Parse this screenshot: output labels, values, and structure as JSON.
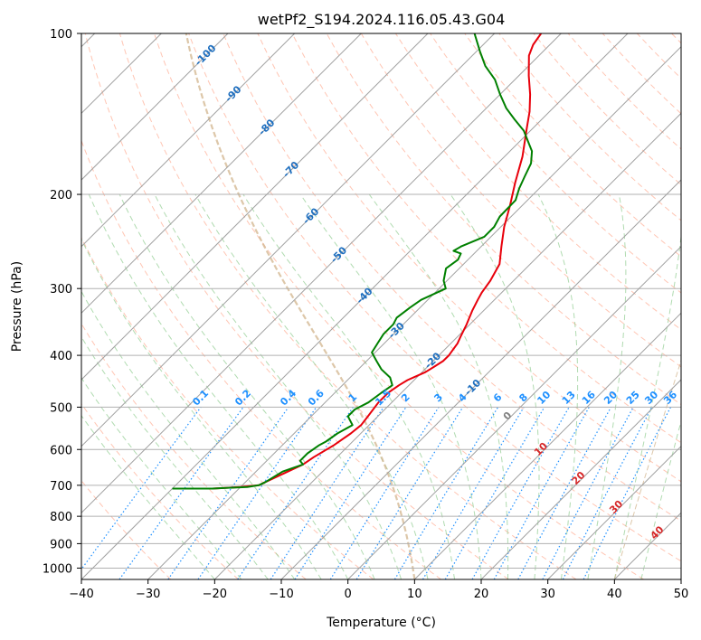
{
  "chart_data": {
    "type": "line",
    "title": "wetPf2_S194.2024.116.05.43.G04",
    "xlabel": "Temperature (°C)",
    "ylabel": "Pressure (hPa)",
    "xlim": [
      -40,
      50
    ],
    "ylim": [
      1050,
      100
    ],
    "y_scale": "log",
    "x_ticks": [
      -40,
      -30,
      -20,
      -10,
      0,
      10,
      20,
      30,
      40,
      50
    ],
    "x_tick_labels": [
      "−40",
      "−30",
      "−20",
      "−10",
      "0",
      "10",
      "20",
      "30",
      "40",
      "50"
    ],
    "y_ticks": [
      100,
      200,
      300,
      400,
      500,
      600,
      700,
      800,
      900,
      1000
    ],
    "y_tick_labels": [
      "100",
      "200",
      "300",
      "400",
      "500",
      "600",
      "700",
      "800",
      "900",
      "1000"
    ],
    "grid": true,
    "skew": true,
    "isotherm_labels": [
      "-100",
      "-90",
      "-80",
      "-70",
      "-60",
      "-50",
      "-40",
      "-30",
      "-20",
      "-10"
    ],
    "isotherm_label_temps": [
      -100,
      -90,
      -80,
      -70,
      -60,
      -50,
      -40,
      -30,
      -20,
      -10
    ],
    "mixing_ratio_labels": [
      "0.1",
      "0.2",
      "0.4",
      "0.6",
      "1",
      "1.5",
      "2",
      "3",
      "4",
      "6",
      "8",
      "10",
      "13",
      "16",
      "20",
      "25",
      "30",
      "36"
    ],
    "mixing_ratio_values": [
      0.1,
      0.2,
      0.4,
      0.6,
      1,
      1.5,
      2,
      3,
      4,
      6,
      8,
      10,
      13,
      16,
      20,
      25,
      30,
      36
    ],
    "adiabat_labels": [
      "0",
      "10",
      "20",
      "30",
      "40"
    ],
    "adiabat_label_temps": [
      0,
      10,
      20,
      30,
      40
    ],
    "colors": {
      "temperature": "#e8000b",
      "dewpoint": "#008000",
      "isotherm_label": "#1f6fbf",
      "mixing_ratio": "#1e90ff",
      "dry_adiabat": "#ff9f80",
      "moist_adiabat": "#8fcc8f",
      "wet_bulb_label": "#d62728",
      "zero_label": "#808080",
      "grid": "#b0b0b0",
      "isotherm": "#a0a0a0",
      "tan_curve": "#d2b48c"
    },
    "series": [
      {
        "name": "",
        "kind": "temperature",
        "points": [
          [
            -34,
            710
          ],
          [
            -30,
            705
          ],
          [
            -27.5,
            700
          ],
          [
            -27,
            690
          ],
          [
            -24,
            640
          ],
          [
            -23.5,
            620
          ],
          [
            -22.3,
            590
          ],
          [
            -21.5,
            560
          ],
          [
            -21.2,
            540
          ],
          [
            -21.5,
            520
          ],
          [
            -22.0,
            490
          ],
          [
            -22.0,
            470
          ],
          [
            -21.5,
            455
          ],
          [
            -21.0,
            445
          ],
          [
            -20.5,
            440
          ],
          [
            -19.5,
            430
          ],
          [
            -19.0,
            420
          ],
          [
            -18.5,
            410
          ],
          [
            -18.5,
            400
          ],
          [
            -19.0,
            380
          ],
          [
            -19.5,
            370
          ],
          [
            -20.5,
            350
          ],
          [
            -21.7,
            330
          ],
          [
            -22.5,
            315
          ],
          [
            -23.0,
            305
          ],
          [
            -23.5,
            290
          ],
          [
            -24.6,
            270
          ],
          [
            -27.0,
            250
          ],
          [
            -29.5,
            230
          ],
          [
            -31.8,
            210
          ],
          [
            -34.5,
            190
          ],
          [
            -37.3,
            170
          ],
          [
            -41.0,
            150
          ],
          [
            -43.0,
            140
          ],
          [
            -45.5,
            130
          ],
          [
            -48.5,
            120
          ],
          [
            -51.5,
            110
          ],
          [
            -52.5,
            105
          ],
          [
            -53.0,
            100
          ]
        ]
      },
      {
        "name": "",
        "kind": "dewpoint",
        "points": [
          [
            -40,
            710
          ],
          [
            -34,
            710
          ],
          [
            -29,
            705
          ],
          [
            -27.5,
            700
          ],
          [
            -27,
            690
          ],
          [
            -26,
            660
          ],
          [
            -24,
            640
          ],
          [
            -25,
            630
          ],
          [
            -25,
            610
          ],
          [
            -24.5,
            590
          ],
          [
            -24,
            580
          ],
          [
            -23.5,
            560
          ],
          [
            -22.5,
            540
          ],
          [
            -23.5,
            530
          ],
          [
            -24.5,
            520
          ],
          [
            -24.5,
            505
          ],
          [
            -23.5,
            490
          ],
          [
            -23.0,
            470
          ],
          [
            -22.5,
            455
          ],
          [
            -24.0,
            440
          ],
          [
            -26.5,
            425
          ],
          [
            -28.5,
            410
          ],
          [
            -30.5,
            395
          ],
          [
            -31.0,
            380
          ],
          [
            -31.5,
            365
          ],
          [
            -31.5,
            350
          ],
          [
            -32.0,
            340
          ],
          [
            -31.5,
            325
          ],
          [
            -31.0,
            315
          ],
          [
            -29.0,
            300
          ],
          [
            -30.5,
            290
          ],
          [
            -32.0,
            275
          ],
          [
            -31.5,
            265
          ],
          [
            -32.0,
            258
          ],
          [
            -33.5,
            255
          ],
          [
            -33.0,
            250
          ],
          [
            -31.0,
            240
          ],
          [
            -31.0,
            230
          ],
          [
            -31.7,
            220
          ],
          [
            -31.8,
            205
          ],
          [
            -33.0,
            195
          ],
          [
            -34.0,
            185
          ],
          [
            -35.0,
            175
          ],
          [
            -36.7,
            166
          ],
          [
            -38.5,
            160
          ],
          [
            -41.0,
            152
          ],
          [
            -44.0,
            145
          ],
          [
            -47.0,
            138
          ],
          [
            -50.0,
            130
          ],
          [
            -53.0,
            122
          ],
          [
            -56.5,
            115
          ],
          [
            -59.5,
            108
          ],
          [
            -63.0,
            100
          ]
        ]
      }
    ]
  }
}
